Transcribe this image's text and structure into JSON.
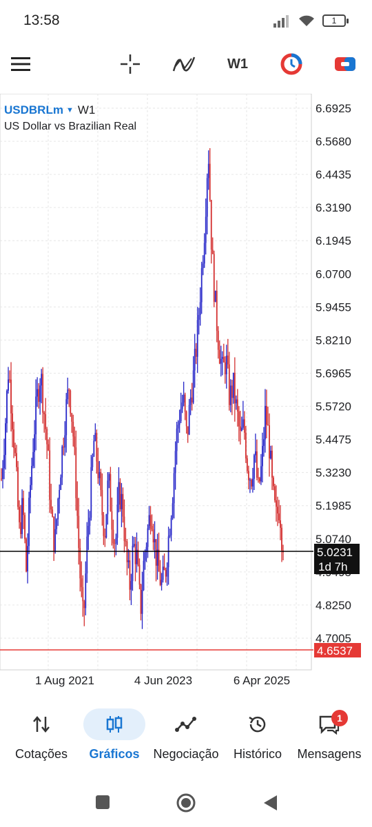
{
  "status": {
    "time": "13:58",
    "battery_level": "1"
  },
  "toolbar": {
    "menu_icon": "hamburger-icon",
    "crosshair_icon": "crosshair-icon",
    "indicators_icon": "indicators-icon",
    "timeframe": "W1",
    "accent_red": "#e53935",
    "accent_blue": "#1976d2"
  },
  "chart": {
    "symbol": "USDBRLm",
    "timeframe": "W1",
    "description": "US Dollar vs Brazilian Real",
    "current_price": "5.0231",
    "countdown": "1d 7h",
    "min_price": "4.6537",
    "bull_color": "#2626c8",
    "bear_color": "#d32f2f"
  },
  "chart_data": {
    "type": "candlestick",
    "y_ticks": [
      "6.6925",
      "6.5680",
      "6.4435",
      "6.3190",
      "6.1945",
      "6.0700",
      "5.9455",
      "5.8210",
      "5.6965",
      "5.5720",
      "5.4475",
      "5.3230",
      "5.1985",
      "5.0740",
      "4.9495",
      "4.8250",
      "4.7005"
    ],
    "x_ticks": [
      "1 Aug 2021",
      "4 Jun 2023",
      "6 Apr 2025"
    ],
    "ylim": [
      4.58,
      6.73
    ],
    "close_series": [
      5.3,
      5.48,
      5.72,
      5.55,
      5.35,
      5.1,
      5.2,
      4.95,
      5.25,
      5.45,
      5.6,
      5.7,
      5.55,
      5.4,
      5.15,
      5.05,
      5.25,
      5.4,
      5.55,
      5.65,
      5.5,
      5.25,
      4.95,
      4.75,
      5.05,
      5.25,
      5.45,
      5.35,
      5.2,
      5.1,
      5.3,
      5.15,
      5.05,
      5.25,
      5.2,
      5.0,
      4.9,
      5.05,
      5.0,
      4.8,
      5.0,
      5.1,
      5.2,
      5.05,
      4.95,
      4.9,
      4.95,
      5.1,
      5.25,
      5.45,
      5.55,
      5.6,
      5.45,
      5.6,
      5.7,
      5.85,
      6.05,
      6.25,
      6.55,
      6.15,
      5.95,
      5.8,
      5.7,
      5.75,
      5.6,
      5.65,
      5.55,
      5.45,
      5.5,
      5.35,
      5.3,
      5.4,
      5.25,
      5.35,
      5.55,
      5.45,
      5.25,
      5.15,
      5.2,
      5.02
    ],
    "horizontal_lines": [
      {
        "label": "5.0231",
        "value": 5.0231,
        "color": "#000000"
      },
      {
        "label": "4.6537",
        "value": 4.6537,
        "color": "#e53935"
      }
    ]
  },
  "nav": {
    "items": [
      {
        "label": "Cotações",
        "icon": "quotes-arrows-icon"
      },
      {
        "label": "Gráficos",
        "icon": "candles-icon"
      },
      {
        "label": "Negociação",
        "icon": "trade-icon"
      },
      {
        "label": "Histórico",
        "icon": "history-icon"
      },
      {
        "label": "Mensagens",
        "icon": "messages-icon"
      }
    ],
    "messages_badge": "1"
  }
}
